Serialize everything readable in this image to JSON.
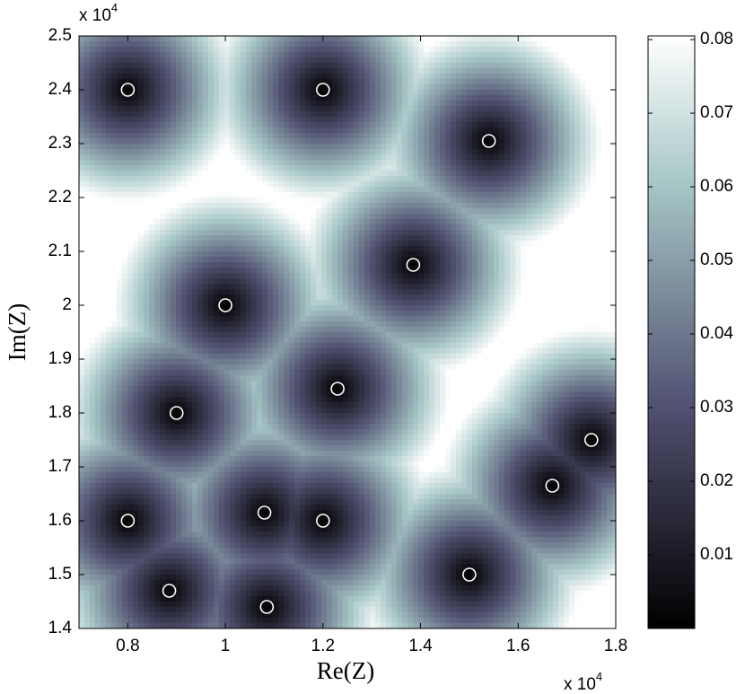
{
  "chart_data": {
    "type": "scatter",
    "xlabel": "Re(Z)",
    "ylabel": "Im(Z)",
    "x_multiplier": {
      "base": "x 10",
      "exponent": "4"
    },
    "y_multiplier": {
      "base": "x 10",
      "exponent": "4"
    },
    "xlim": [
      7000,
      18000
    ],
    "ylim": [
      14000,
      25000
    ],
    "xticks": [
      {
        "value": 8000,
        "label": "0.8"
      },
      {
        "value": 10000,
        "label": "1"
      },
      {
        "value": 12000,
        "label": "1.2"
      },
      {
        "value": 14000,
        "label": "1.4"
      },
      {
        "value": 16000,
        "label": "1.6"
      },
      {
        "value": 18000,
        "label": "1.8"
      }
    ],
    "yticks": [
      {
        "value": 14000,
        "label": "1.4"
      },
      {
        "value": 15000,
        "label": "1.5"
      },
      {
        "value": 16000,
        "label": "1.6"
      },
      {
        "value": 17000,
        "label": "1.7"
      },
      {
        "value": 18000,
        "label": "1.8"
      },
      {
        "value": 19000,
        "label": "1.9"
      },
      {
        "value": 20000,
        "label": "2"
      },
      {
        "value": 21000,
        "label": "2.1"
      },
      {
        "value": 22000,
        "label": "2.2"
      },
      {
        "value": 23000,
        "label": "2.3"
      },
      {
        "value": 24000,
        "label": "2.4"
      },
      {
        "value": 25000,
        "label": "2.5"
      }
    ],
    "x": [
      8000,
      12000,
      15400,
      13850,
      10000,
      12300,
      9000,
      17500,
      16700,
      10800,
      12000,
      8000,
      15000,
      8850,
      10850
    ],
    "y": [
      24000,
      24000,
      23050,
      20750,
      20000,
      18450,
      18000,
      17500,
      16650,
      16150,
      16000,
      16000,
      15000,
      14700,
      14400
    ],
    "marker_color": "#ffffff",
    "colormap": "bone",
    "clim": [
      0,
      0.0805
    ],
    "cticks": [
      0.01,
      0.02,
      0.03,
      0.04,
      0.05,
      0.06,
      0.07,
      0.08
    ]
  }
}
